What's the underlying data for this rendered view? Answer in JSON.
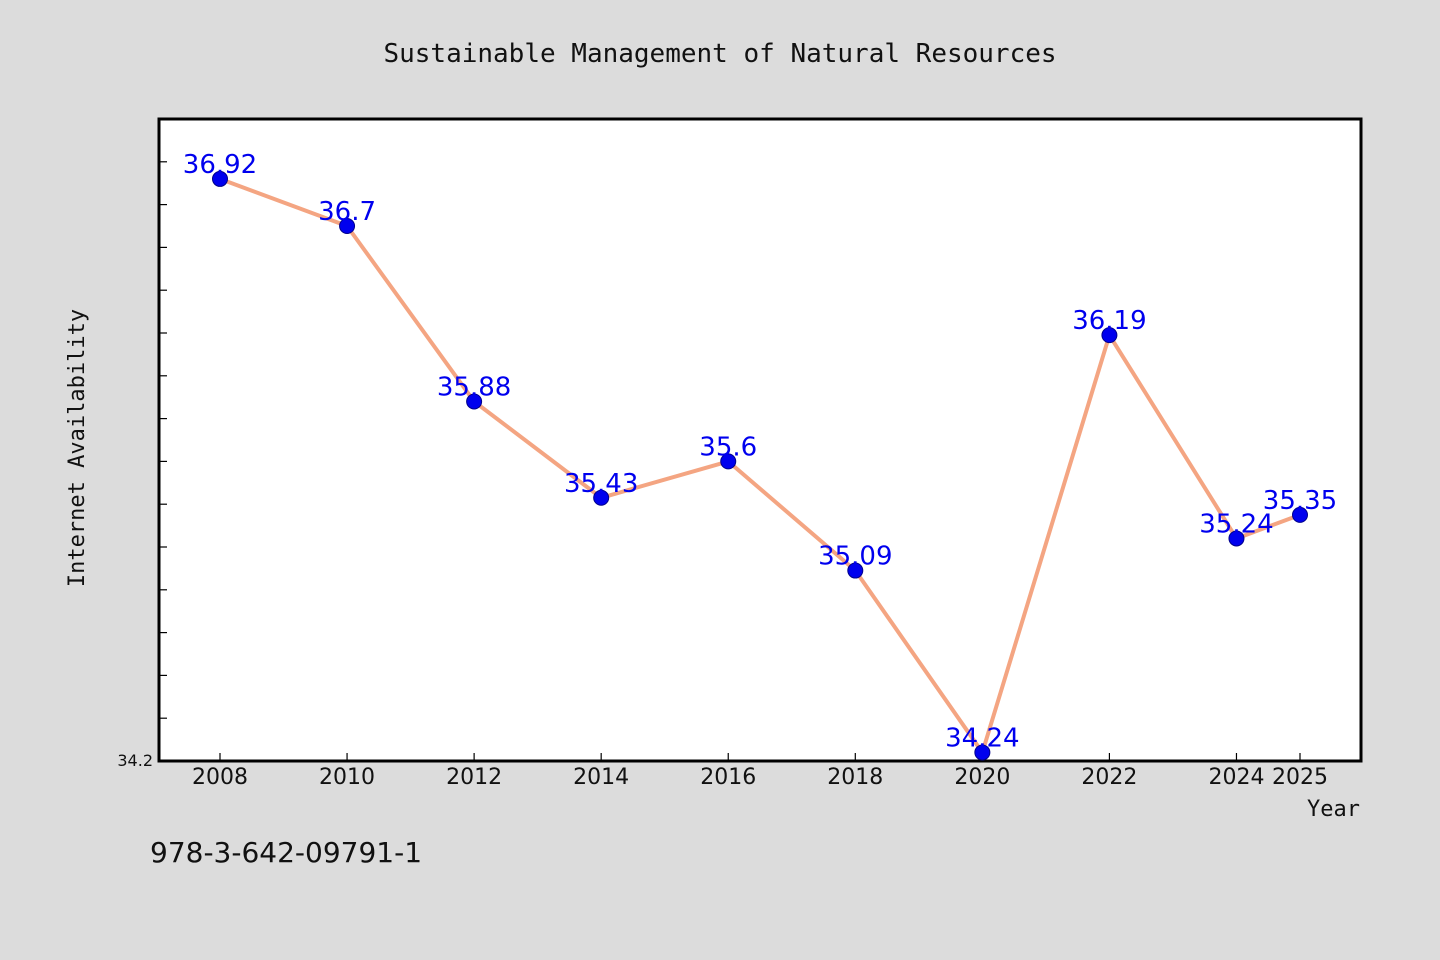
{
  "chart_data": {
    "type": "line",
    "title": "Sustainable Management of Natural Resources",
    "xlabel": "Year",
    "ylabel": "Internet Availability",
    "x": [
      "2008",
      "2010",
      "2012",
      "2014",
      "2016",
      "2018",
      "2020",
      "2022",
      "2024",
      "2025"
    ],
    "series": [
      {
        "values": [
          36.92,
          36.7,
          35.88,
          35.43,
          35.6,
          35.09,
          34.24,
          36.19,
          35.24,
          35.35
        ],
        "data_labels": [
          "36.92",
          "36.7",
          "35.88",
          "35.43",
          "35.6",
          "35.09",
          "34.24",
          "36.19",
          "35.24",
          "35.35"
        ],
        "line_color": "#f4a582",
        "marker_color": "#0000ee",
        "label_color": "#0000ee"
      }
    ],
    "ylim": [
      34.2,
      37.2
    ],
    "yticks_labeled": [
      "34.2"
    ],
    "y_minor_tick_step": 0.2,
    "grid": false,
    "legend": "none",
    "plot_background": "#ffffff",
    "figure_background": "#dcdcdc"
  },
  "footnote": "978-3-642-09791-1"
}
